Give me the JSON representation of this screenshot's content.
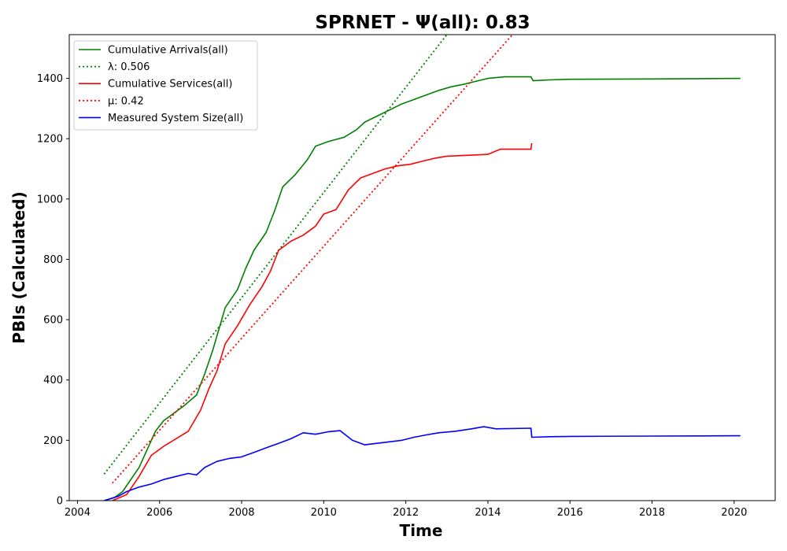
{
  "chart_data": {
    "type": "line",
    "title": "SPRNET -  Ψ(all): 0.83",
    "xlabel": "Time",
    "ylabel": "PBIs (Calculated)",
    "xlim": [
      2003.8,
      2021.0
    ],
    "ylim": [
      0,
      1545
    ],
    "xticks": [
      2004,
      2006,
      2008,
      2010,
      2012,
      2014,
      2016,
      2018,
      2020
    ],
    "yticks": [
      0,
      200,
      400,
      600,
      800,
      1000,
      1200,
      1400
    ],
    "grid": false,
    "legend_position": "upper left",
    "series": [
      {
        "name": "Cumulative Arrivals(all)",
        "color": "#008000",
        "style": "solid",
        "points": [
          [
            2004.65,
            0
          ],
          [
            2004.9,
            10
          ],
          [
            2005.1,
            30
          ],
          [
            2005.3,
            70
          ],
          [
            2005.5,
            110
          ],
          [
            2005.7,
            170
          ],
          [
            2005.9,
            230
          ],
          [
            2006.1,
            265
          ],
          [
            2006.3,
            285
          ],
          [
            2006.6,
            315
          ],
          [
            2006.9,
            350
          ],
          [
            2007.1,
            420
          ],
          [
            2007.3,
            500
          ],
          [
            2007.6,
            640
          ],
          [
            2007.9,
            700
          ],
          [
            2008.1,
            770
          ],
          [
            2008.3,
            830
          ],
          [
            2008.6,
            890
          ],
          [
            2008.8,
            960
          ],
          [
            2009.0,
            1040
          ],
          [
            2009.3,
            1080
          ],
          [
            2009.6,
            1130
          ],
          [
            2009.8,
            1175
          ],
          [
            2010.1,
            1190
          ],
          [
            2010.5,
            1205
          ],
          [
            2010.8,
            1230
          ],
          [
            2011.0,
            1255
          ],
          [
            2011.3,
            1275
          ],
          [
            2011.6,
            1295
          ],
          [
            2011.9,
            1315
          ],
          [
            2012.2,
            1330
          ],
          [
            2012.5,
            1345
          ],
          [
            2012.8,
            1360
          ],
          [
            2013.1,
            1372
          ],
          [
            2013.4,
            1380
          ],
          [
            2013.7,
            1390
          ],
          [
            2014.0,
            1400
          ],
          [
            2014.4,
            1405
          ],
          [
            2015.05,
            1405
          ],
          [
            2015.1,
            1392
          ],
          [
            2015.5,
            1395
          ],
          [
            2016.0,
            1397
          ],
          [
            2018.0,
            1398
          ],
          [
            2020.15,
            1400
          ]
        ]
      },
      {
        "name": "λ: 0.506",
        "color": "#008000",
        "style": "dotted",
        "points": [
          [
            2004.65,
            88
          ],
          [
            2013.0,
            1545
          ]
        ]
      },
      {
        "name": "Cumulative Services(all)",
        "color": "#ff0000",
        "style": "solid",
        "points": [
          [
            2004.85,
            0
          ],
          [
            2005.2,
            20
          ],
          [
            2005.5,
            80
          ],
          [
            2005.8,
            150
          ],
          [
            2006.1,
            180
          ],
          [
            2006.4,
            205
          ],
          [
            2006.7,
            230
          ],
          [
            2007.0,
            300
          ],
          [
            2007.2,
            370
          ],
          [
            2007.4,
            430
          ],
          [
            2007.6,
            520
          ],
          [
            2007.9,
            580
          ],
          [
            2008.2,
            650
          ],
          [
            2008.5,
            710
          ],
          [
            2008.7,
            760
          ],
          [
            2008.9,
            830
          ],
          [
            2009.2,
            860
          ],
          [
            2009.5,
            880
          ],
          [
            2009.8,
            910
          ],
          [
            2010.0,
            950
          ],
          [
            2010.3,
            965
          ],
          [
            2010.6,
            1030
          ],
          [
            2010.9,
            1070
          ],
          [
            2011.2,
            1085
          ],
          [
            2011.5,
            1100
          ],
          [
            2011.8,
            1110
          ],
          [
            2012.1,
            1115
          ],
          [
            2012.4,
            1125
          ],
          [
            2012.7,
            1135
          ],
          [
            2013.0,
            1142
          ],
          [
            2013.5,
            1145
          ],
          [
            2014.0,
            1148
          ],
          [
            2014.3,
            1165
          ],
          [
            2015.05,
            1165
          ],
          [
            2015.07,
            1185
          ]
        ]
      },
      {
        "name": "μ: 0.42",
        "color": "#ff0000",
        "style": "dotted",
        "points": [
          [
            2004.85,
            58
          ],
          [
            2014.6,
            1545
          ]
        ]
      },
      {
        "name": "Measured System Size(all)",
        "color": "#0000ff",
        "style": "solid",
        "points": [
          [
            2004.65,
            0
          ],
          [
            2005.0,
            15
          ],
          [
            2005.2,
            30
          ],
          [
            2005.5,
            45
          ],
          [
            2005.8,
            55
          ],
          [
            2006.1,
            70
          ],
          [
            2006.4,
            80
          ],
          [
            2006.7,
            90
          ],
          [
            2006.9,
            85
          ],
          [
            2007.1,
            110
          ],
          [
            2007.4,
            130
          ],
          [
            2007.7,
            140
          ],
          [
            2008.0,
            145
          ],
          [
            2008.3,
            160
          ],
          [
            2008.6,
            175
          ],
          [
            2008.9,
            190
          ],
          [
            2009.2,
            205
          ],
          [
            2009.5,
            225
          ],
          [
            2009.8,
            220
          ],
          [
            2010.1,
            228
          ],
          [
            2010.4,
            232
          ],
          [
            2010.7,
            200
          ],
          [
            2011.0,
            185
          ],
          [
            2011.3,
            190
          ],
          [
            2011.6,
            195
          ],
          [
            2011.9,
            200
          ],
          [
            2012.2,
            210
          ],
          [
            2012.5,
            218
          ],
          [
            2012.8,
            225
          ],
          [
            2013.2,
            230
          ],
          [
            2013.6,
            238
          ],
          [
            2013.9,
            245
          ],
          [
            2014.2,
            238
          ],
          [
            2015.05,
            240
          ],
          [
            2015.07,
            210
          ],
          [
            2015.5,
            212
          ],
          [
            2016.0,
            213
          ],
          [
            2018.0,
            214
          ],
          [
            2020.15,
            215
          ]
        ]
      }
    ]
  }
}
